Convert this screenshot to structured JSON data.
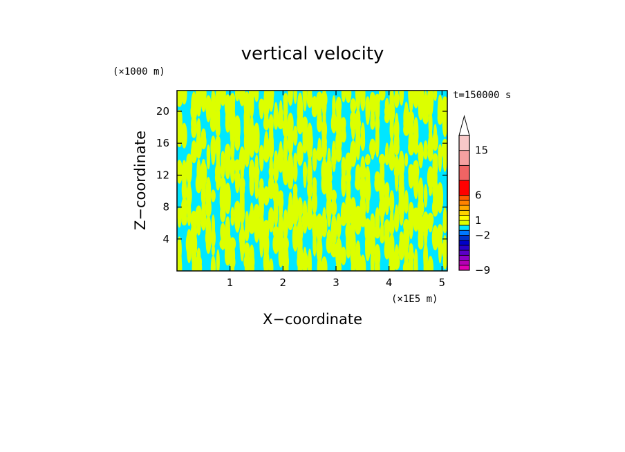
{
  "chart_data": {
    "type": "heatmap",
    "title": "vertical velocity",
    "xlabel": "X−coordinate",
    "ylabel": "Z−coordinate",
    "x_unit": "(×1E5 m)",
    "y_unit": "(×1000 m)",
    "time_label": "t=150000 s",
    "xlim": [
      0,
      5.1
    ],
    "ylim": [
      0,
      22.6
    ],
    "x_ticks": [
      "1",
      "2",
      "3",
      "4",
      "5"
    ],
    "x_tick_values": [
      1,
      2,
      3,
      4,
      5
    ],
    "y_ticks": [
      "4",
      "8",
      "12",
      "16",
      "20"
    ],
    "y_tick_values": [
      4,
      8,
      12,
      16,
      20
    ],
    "field_colors": {
      "negative": "#00e6ff",
      "positive": "#dcff00"
    },
    "colorbar": {
      "levels": [
        -9,
        -8,
        -7,
        -6,
        -5,
        -4,
        -3,
        -2,
        -1,
        0,
        1,
        2,
        3,
        4,
        5,
        6,
        9,
        12,
        15,
        18
      ],
      "labels": [
        "−9",
        "−2",
        "1",
        "6",
        "15"
      ],
      "label_values": [
        -9,
        -2,
        1,
        6,
        15
      ],
      "colors": [
        "#e000b4",
        "#b400b4",
        "#8c00c8",
        "#5a00c8",
        "#2800c8",
        "#0000c8",
        "#0032c8",
        "#0078ff",
        "#00e6ff",
        "#dcff00",
        "#ffff00",
        "#ffd200",
        "#ffaa00",
        "#ff8200",
        "#ff5a00",
        "#ff0000",
        "#f06464",
        "#f5a0a0",
        "#f8c8c8"
      ],
      "extend": "max"
    }
  }
}
